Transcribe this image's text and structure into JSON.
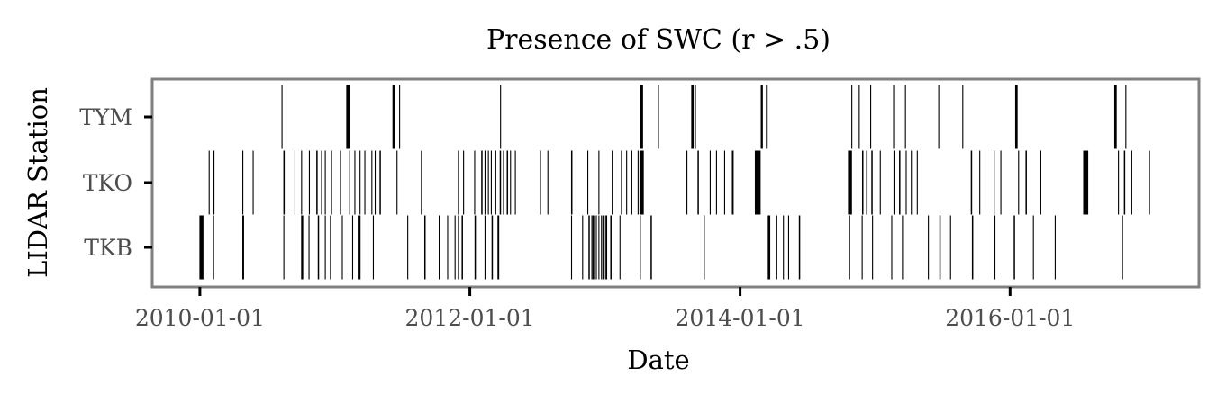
{
  "chart_data": {
    "type": "event-raster",
    "title": "Presence of SWC (r > .5)",
    "xlabel": "Date",
    "ylabel": "LIDAR Station",
    "categories": [
      "TKB",
      "TKO",
      "TYM"
    ],
    "x_ticks": [
      "2010-01-01",
      "2012-01-01",
      "2014-01-01",
      "2016-01-01"
    ],
    "xlim": [
      "2009-08-30",
      "2017-05-21"
    ],
    "colors": {
      "mark": "#000000",
      "frame": "#808080",
      "tick_label": "#4d4d4d",
      "background": "#ffffff"
    },
    "series": [
      {
        "name": "TKB",
        "dates": [
          "2010-01-01",
          "2010-01-02",
          "2010-01-03",
          "2010-01-04",
          "2010-01-05",
          "2010-01-06",
          "2010-01-07",
          "2010-01-08",
          "2010-01-11",
          "2010-02-07",
          "2010-04-27",
          "2010-04-28",
          "2010-04-29",
          "2010-08-16",
          "2010-10-03",
          "2010-10-04",
          "2010-10-05",
          "2010-10-06",
          "2010-10-23",
          "2010-11-17",
          "2010-11-18",
          "2010-12-06",
          "2010-12-20",
          "2011-01-21",
          "2011-02-18",
          "2011-03-05",
          "2011-03-06",
          "2011-03-07",
          "2011-03-08",
          "2011-03-09",
          "2011-03-10",
          "2011-04-15",
          "2011-07-17",
          "2011-09-01",
          "2011-09-02",
          "2011-10-10",
          "2011-11-02",
          "2011-11-22",
          "2011-12-01",
          "2011-12-11",
          "2011-12-12",
          "2012-01-15",
          "2012-01-16",
          "2012-02-11",
          "2012-03-01",
          "2012-03-02",
          "2012-03-17",
          "2012-03-18",
          "2012-03-19",
          "2012-10-02",
          "2012-11-01",
          "2012-11-18",
          "2012-11-19",
          "2012-11-26",
          "2012-11-29",
          "2012-12-01",
          "2012-12-08",
          "2012-12-15",
          "2012-12-22",
          "2012-12-26",
          "2013-01-02",
          "2013-01-05",
          "2013-01-16",
          "2013-01-17",
          "2013-02-10",
          "2013-04-06",
          "2013-05-05",
          "2013-05-06",
          "2013-09-26",
          "2014-03-18",
          "2014-03-19",
          "2014-03-20",
          "2014-03-21",
          "2014-03-22",
          "2014-04-10",
          "2014-04-28",
          "2014-05-12",
          "2014-06-10",
          "2014-06-11",
          "2014-10-23",
          "2014-10-24",
          "2014-11-27",
          "2014-12-25",
          "2015-02-15",
          "2015-03-16",
          "2015-05-25",
          "2015-06-25",
          "2015-06-26",
          "2015-07-24",
          "2015-09-21",
          "2015-09-22",
          "2015-11-20",
          "2015-11-21",
          "2016-01-12",
          "2016-01-13",
          "2016-03-04",
          "2016-05-02",
          "2016-10-31"
        ]
      },
      {
        "name": "TKO",
        "dates": [
          "2010-01-26",
          "2010-02-07",
          "2010-02-08",
          "2010-04-27",
          "2010-05-25",
          "2010-08-16",
          "2010-08-17",
          "2010-09-15",
          "2010-10-03",
          "2010-10-24",
          "2010-11-13",
          "2010-11-14",
          "2010-11-26",
          "2010-12-06",
          "2010-12-23",
          "2011-01-16",
          "2011-02-10",
          "2011-02-24",
          "2011-03-10",
          "2011-03-23",
          "2011-04-11",
          "2011-04-20",
          "2011-05-03",
          "2011-05-04",
          "2011-06-18",
          "2011-08-23",
          "2011-12-01",
          "2011-12-02",
          "2011-12-15",
          "2012-01-14",
          "2012-02-02",
          "2012-02-03",
          "2012-02-11",
          "2012-02-20",
          "2012-02-28",
          "2012-03-11",
          "2012-03-23",
          "2012-03-24",
          "2012-04-01",
          "2012-04-02",
          "2012-04-11",
          "2012-04-12",
          "2012-04-20",
          "2012-05-03",
          "2012-07-10",
          "2012-07-30",
          "2012-10-02",
          "2012-10-03",
          "2012-11-15",
          "2012-12-15",
          "2013-01-20",
          "2013-02-14",
          "2013-02-28",
          "2013-03-14",
          "2013-03-31",
          "2013-04-05",
          "2013-04-06",
          "2013-04-07",
          "2013-04-08",
          "2013-04-09",
          "2013-04-10",
          "2013-04-11",
          "2013-04-12",
          "2013-04-13",
          "2013-04-14",
          "2013-08-10",
          "2013-09-09",
          "2013-09-10",
          "2013-10-12",
          "2013-10-29",
          "2013-11-20",
          "2013-12-11",
          "2013-12-12",
          "2013-12-13",
          "2014-02-11",
          "2014-02-12",
          "2014-02-13",
          "2014-02-14",
          "2014-02-15",
          "2014-02-16",
          "2014-02-17",
          "2014-02-18",
          "2014-02-19",
          "2014-02-20",
          "2014-02-21",
          "2014-02-22",
          "2014-02-23",
          "2014-02-24",
          "2014-10-21",
          "2014-10-22",
          "2014-10-23",
          "2014-10-24",
          "2014-10-25",
          "2014-10-26",
          "2014-10-27",
          "2014-10-28",
          "2014-10-29",
          "2014-11-28",
          "2014-11-29",
          "2014-12-09",
          "2014-12-10",
          "2014-12-23",
          "2014-12-24",
          "2015-01-15",
          "2015-02-21",
          "2015-02-22",
          "2015-03-08",
          "2015-03-09",
          "2015-03-26",
          "2015-04-09",
          "2015-04-25",
          "2015-09-18",
          "2015-09-19",
          "2015-10-11",
          "2015-11-19",
          "2015-12-07",
          "2016-01-24",
          "2016-02-13",
          "2016-02-14",
          "2016-03-23",
          "2016-03-24",
          "2016-07-18",
          "2016-07-19",
          "2016-07-20",
          "2016-07-21",
          "2016-07-22",
          "2016-07-23",
          "2016-07-24",
          "2016-07-25",
          "2016-07-26",
          "2016-07-27",
          "2016-07-28",
          "2016-07-29",
          "2016-10-20",
          "2016-11-05",
          "2016-11-06",
          "2016-11-25",
          "2017-01-12"
        ]
      },
      {
        "name": "TYM",
        "dates": [
          "2010-08-11",
          "2011-02-02",
          "2011-02-03",
          "2011-02-04",
          "2011-02-05",
          "2011-02-06",
          "2011-02-07",
          "2011-02-08",
          "2011-02-09",
          "2011-06-07",
          "2011-06-08",
          "2011-06-09",
          "2011-06-10",
          "2011-06-25",
          "2012-03-24",
          "2013-04-07",
          "2013-04-08",
          "2013-04-09",
          "2013-04-10",
          "2013-04-11",
          "2013-04-12",
          "2013-05-25",
          "2013-08-23",
          "2013-08-24",
          "2013-08-25",
          "2013-08-26",
          "2013-08-27",
          "2013-09-02",
          "2014-02-27",
          "2014-02-28",
          "2014-03-01",
          "2014-03-02",
          "2014-03-13",
          "2014-03-14",
          "2014-03-15",
          "2014-10-30",
          "2014-11-19",
          "2014-12-20",
          "2015-02-20",
          "2015-03-24",
          "2015-06-22",
          "2015-08-26",
          "2016-01-16",
          "2016-01-17",
          "2016-01-18",
          "2016-01-19",
          "2016-01-20",
          "2016-10-10",
          "2016-10-11",
          "2016-10-12",
          "2016-10-13",
          "2016-10-14",
          "2016-11-09"
        ]
      }
    ]
  }
}
